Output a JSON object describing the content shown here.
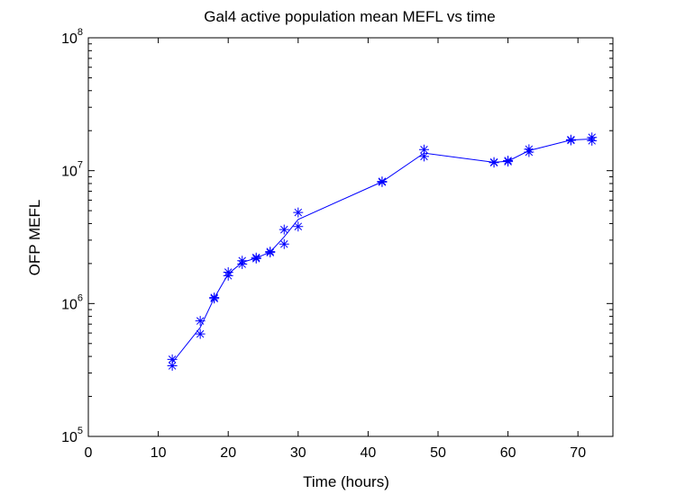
{
  "chart_data": {
    "type": "line",
    "title": "Gal4 active population mean MEFL vs time",
    "xlabel": "Time (hours)",
    "ylabel": "OFP MEFL",
    "xlim": [
      0,
      75
    ],
    "ylim": [
      100000,
      100000000
    ],
    "yscale": "log",
    "x_ticks": [
      0,
      10,
      20,
      30,
      40,
      50,
      60,
      70
    ],
    "y_ticks": [
      {
        "value": 100000,
        "base": "10",
        "exp": "5"
      },
      {
        "value": 1000000,
        "base": "10",
        "exp": "6"
      },
      {
        "value": 10000000,
        "base": "10",
        "exp": "7"
      },
      {
        "value": 100000000,
        "base": "10",
        "exp": "8"
      }
    ],
    "grid": false,
    "marker": "asterisk",
    "colors": {
      "series": "#0000ff",
      "axes": "#000000",
      "background": "#ffffff"
    },
    "series": [
      {
        "x": [
          12,
          12,
          16,
          16,
          18,
          18,
          20,
          20,
          22,
          22,
          24,
          24,
          26,
          26,
          28,
          28,
          30,
          30,
          42,
          42,
          48,
          48,
          58,
          58,
          60,
          60,
          63,
          63,
          69,
          69,
          72,
          72
        ],
        "y": [
          340000,
          380000,
          590000,
          740000,
          1090000,
          1110000,
          1620000,
          1720000,
          1980000,
          2100000,
          2180000,
          2220000,
          2420000,
          2460000,
          2800000,
          3600000,
          3800000,
          4850000,
          8200000,
          8300000,
          12800000,
          14400000,
          11500000,
          11600000,
          11700000,
          11900000,
          13800000,
          14500000,
          16900000,
          17100000,
          16800000,
          17800000
        ]
      }
    ]
  }
}
